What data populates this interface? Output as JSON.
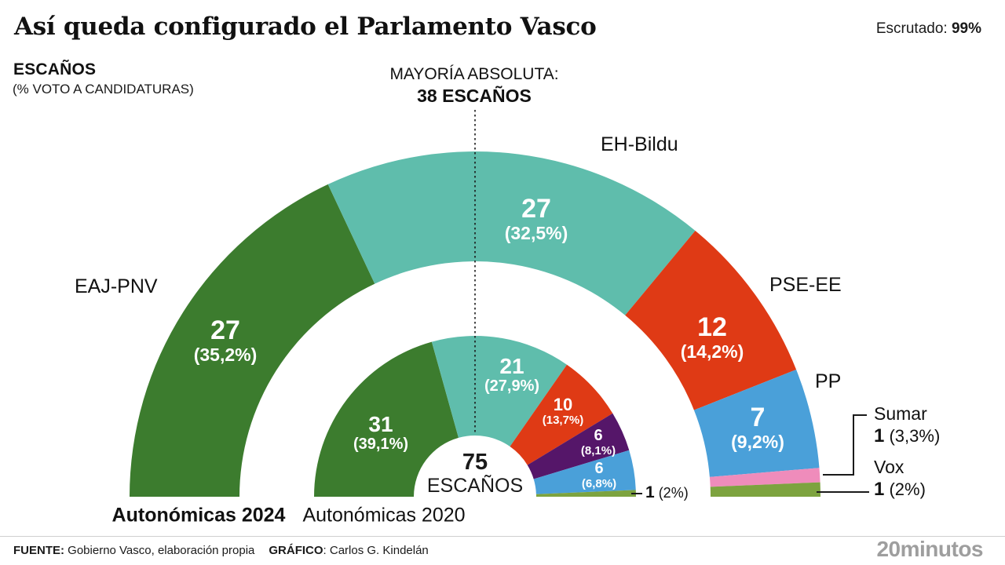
{
  "header": {
    "title": "Así queda configurado el Parlamento Vasco",
    "escrutado_label": "Escrutado: ",
    "escrutado_value": "99%"
  },
  "legend": {
    "escanos": "ESCAÑOS",
    "sub": "(% VOTO A CANDIDATURAS)"
  },
  "majority_note": {
    "line1": "MAYORÍA ABSOLUTA:",
    "line2": "38 ESCAÑOS"
  },
  "center": {
    "value": "75",
    "unit": "ESCAÑOS"
  },
  "chart_data": {
    "type": "hemicycle-donut",
    "title": "Así queda configurado el Parlamento Vasco",
    "total_seats": 75,
    "majority_seats": 38,
    "rings": [
      {
        "name": "Autonómicas 2024",
        "position": "outer",
        "segments": [
          {
            "party": "EAJ-PNV",
            "seats": 27,
            "pct": "(35,2%)",
            "color": "#3c7c2e"
          },
          {
            "party": "EH-Bildu",
            "seats": 27,
            "pct": "(32,5%)",
            "color": "#5fbdac"
          },
          {
            "party": "PSE-EE",
            "seats": 12,
            "pct": "(14,2%)",
            "color": "#df3a15"
          },
          {
            "party": "PP",
            "seats": 7,
            "pct": "(9,2%)",
            "color": "#4aa0d9"
          },
          {
            "party": "Sumar",
            "seats": 1,
            "pct": "(3,3%)",
            "color": "#ef8cbb"
          },
          {
            "party": "Vox",
            "seats": 1,
            "pct": "(2%)",
            "color": "#7da33f"
          }
        ]
      },
      {
        "name": "Autonómicas 2020",
        "position": "inner",
        "segments": [
          {
            "seats": 31,
            "pct": "(39,1%)",
            "color": "#3c7c2e"
          },
          {
            "seats": 21,
            "pct": "(27,9%)",
            "color": "#5fbdac"
          },
          {
            "seats": 10,
            "pct": "(13,7%)",
            "color": "#df3a15"
          },
          {
            "seats": 6,
            "pct": "(8,1%)",
            "color": "#551669"
          },
          {
            "seats": 6,
            "pct": "(6,8%)",
            "color": "#4aa0d9"
          },
          {
            "seats": 1,
            "pct": "(2%)",
            "color": "#7da33f"
          }
        ]
      }
    ]
  },
  "callouts": {
    "sumar": {
      "name": "Sumar",
      "seats": "1",
      "pct": " (3,3%)"
    },
    "vox": {
      "name": "Vox",
      "seats": "1",
      "pct": " (2%)"
    },
    "inner_vox": {
      "seats": "1",
      "pct": " (2%)"
    }
  },
  "footer": {
    "fuente_label": "FUENTE:",
    "fuente_text": " Gobierno Vasco, elaboración propia",
    "grafico_label": "GRÁFICO",
    "grafico_text": ": Carlos G. Kindelán",
    "logo": "20minutos"
  }
}
